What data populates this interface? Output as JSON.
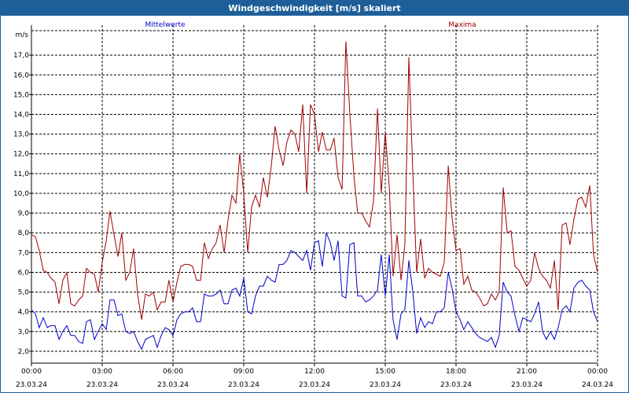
{
  "window": {
    "title": "Windgeschwindigkeit [m/s] skaliert"
  },
  "colors": {
    "titlebar": "#1f5f99",
    "mean": "#0000c8",
    "max": "#a00000",
    "grid": "#000000"
  },
  "chart_data": {
    "type": "line",
    "title": "Windgeschwindigkeit [m/s] skaliert",
    "ylabel": "m/s",
    "xlabel": "",
    "ylim": [
      1.4,
      18.2
    ],
    "xlim": [
      0,
      24
    ],
    "grid": true,
    "y_ticks": [
      "2,0",
      "3,0",
      "4,0",
      "5,0",
      "6,0",
      "7,0",
      "8,0",
      "9,0",
      "10,0",
      "11,0",
      "12,0",
      "13,0",
      "14,0",
      "15,0",
      "16,0",
      "17,0"
    ],
    "x_ticks": [
      {
        "time": "00:00",
        "date": "23.03.24"
      },
      {
        "time": "03:00",
        "date": "23.03.24"
      },
      {
        "time": "06:00",
        "date": "23.03.24"
      },
      {
        "time": "09:00",
        "date": "23.03.24"
      },
      {
        "time": "12:00",
        "date": "23.03.24"
      },
      {
        "time": "15:00",
        "date": "23.03.24"
      },
      {
        "time": "18:00",
        "date": "23.03.24"
      },
      {
        "time": "21:00",
        "date": "23.03.24"
      },
      {
        "time": "00:00",
        "date": "24.03.24"
      }
    ],
    "series": [
      {
        "name": "Mittelwerte",
        "color": "#0000c8",
        "points": [
          [
            0.0,
            4.1
          ],
          [
            0.17,
            3.9
          ],
          [
            0.33,
            3.2
          ],
          [
            0.5,
            3.7
          ],
          [
            0.67,
            3.2
          ],
          [
            0.83,
            3.3
          ],
          [
            1.0,
            3.3
          ],
          [
            1.17,
            2.6
          ],
          [
            1.33,
            3.0
          ],
          [
            1.5,
            3.3
          ],
          [
            1.67,
            2.8
          ],
          [
            1.83,
            2.8
          ],
          [
            2.0,
            2.5
          ],
          [
            2.17,
            2.4
          ],
          [
            2.33,
            3.5
          ],
          [
            2.5,
            3.6
          ],
          [
            2.67,
            2.6
          ],
          [
            2.83,
            3.0
          ],
          [
            3.0,
            3.4
          ],
          [
            3.17,
            3.1
          ],
          [
            3.33,
            4.6
          ],
          [
            3.5,
            4.6
          ],
          [
            3.67,
            3.8
          ],
          [
            3.83,
            3.9
          ],
          [
            4.0,
            3.0
          ],
          [
            4.17,
            2.9
          ],
          [
            4.33,
            3.0
          ],
          [
            4.5,
            2.5
          ],
          [
            4.67,
            2.1
          ],
          [
            4.83,
            2.6
          ],
          [
            5.0,
            2.7
          ],
          [
            5.17,
            2.8
          ],
          [
            5.33,
            2.2
          ],
          [
            5.5,
            2.8
          ],
          [
            5.67,
            3.2
          ],
          [
            5.83,
            3.1
          ],
          [
            6.0,
            2.8
          ],
          [
            6.17,
            3.6
          ],
          [
            6.33,
            3.9
          ],
          [
            6.5,
            4.0
          ],
          [
            6.67,
            4.0
          ],
          [
            6.83,
            4.2
          ],
          [
            7.0,
            3.5
          ],
          [
            7.17,
            3.5
          ],
          [
            7.33,
            4.9
          ],
          [
            7.5,
            4.8
          ],
          [
            7.67,
            4.8
          ],
          [
            7.83,
            4.9
          ],
          [
            8.0,
            5.1
          ],
          [
            8.17,
            4.4
          ],
          [
            8.33,
            4.4
          ],
          [
            8.5,
            5.1
          ],
          [
            8.67,
            5.2
          ],
          [
            8.83,
            4.8
          ],
          [
            9.0,
            5.7
          ],
          [
            9.17,
            4.0
          ],
          [
            9.33,
            3.9
          ],
          [
            9.5,
            4.8
          ],
          [
            9.67,
            5.3
          ],
          [
            9.83,
            5.3
          ],
          [
            10.0,
            5.8
          ],
          [
            10.17,
            5.6
          ],
          [
            10.33,
            5.5
          ],
          [
            10.5,
            6.4
          ],
          [
            10.67,
            6.4
          ],
          [
            10.83,
            6.6
          ],
          [
            11.0,
            7.1
          ],
          [
            11.17,
            7.0
          ],
          [
            11.33,
            6.8
          ],
          [
            11.5,
            6.6
          ],
          [
            11.67,
            7.1
          ],
          [
            11.83,
            6.1
          ],
          [
            12.0,
            7.5
          ],
          [
            12.17,
            7.6
          ],
          [
            12.33,
            6.3
          ],
          [
            12.5,
            8.0
          ],
          [
            12.67,
            7.5
          ],
          [
            12.83,
            6.6
          ],
          [
            13.0,
            7.6
          ],
          [
            13.17,
            4.8
          ],
          [
            13.33,
            4.7
          ],
          [
            13.5,
            7.4
          ],
          [
            13.67,
            7.5
          ],
          [
            13.83,
            4.8
          ],
          [
            14.0,
            4.8
          ],
          [
            14.17,
            4.5
          ],
          [
            14.33,
            4.6
          ],
          [
            14.5,
            4.8
          ],
          [
            14.67,
            5.1
          ],
          [
            14.83,
            6.9
          ],
          [
            15.0,
            4.8
          ],
          [
            15.17,
            6.9
          ],
          [
            15.33,
            3.6
          ],
          [
            15.5,
            2.6
          ],
          [
            15.67,
            3.9
          ],
          [
            15.83,
            4.1
          ],
          [
            16.0,
            6.6
          ],
          [
            16.17,
            5.0
          ],
          [
            16.33,
            2.9
          ],
          [
            16.5,
            3.7
          ],
          [
            16.67,
            3.2
          ],
          [
            16.83,
            3.5
          ],
          [
            17.0,
            3.4
          ],
          [
            17.17,
            4.0
          ],
          [
            17.33,
            4.0
          ],
          [
            17.5,
            4.2
          ],
          [
            17.67,
            6.0
          ],
          [
            17.83,
            5.2
          ],
          [
            18.0,
            4.0
          ],
          [
            18.17,
            3.6
          ],
          [
            18.33,
            3.1
          ],
          [
            18.5,
            3.5
          ],
          [
            18.67,
            3.2
          ],
          [
            18.83,
            2.9
          ],
          [
            19.0,
            2.7
          ],
          [
            19.17,
            2.6
          ],
          [
            19.33,
            2.5
          ],
          [
            19.5,
            2.7
          ],
          [
            19.67,
            2.2
          ],
          [
            19.83,
            2.8
          ],
          [
            20.0,
            5.5
          ],
          [
            20.17,
            5.0
          ],
          [
            20.33,
            4.8
          ],
          [
            20.5,
            3.8
          ],
          [
            20.67,
            3.0
          ],
          [
            20.83,
            3.7
          ],
          [
            21.0,
            3.6
          ],
          [
            21.17,
            3.5
          ],
          [
            21.33,
            3.9
          ],
          [
            21.5,
            4.5
          ],
          [
            21.67,
            3.0
          ],
          [
            21.83,
            2.6
          ],
          [
            22.0,
            3.0
          ],
          [
            22.17,
            2.6
          ],
          [
            22.33,
            3.2
          ],
          [
            22.5,
            4.1
          ],
          [
            22.67,
            4.3
          ],
          [
            22.83,
            4.0
          ],
          [
            23.0,
            5.2
          ],
          [
            23.17,
            5.5
          ],
          [
            23.33,
            5.6
          ],
          [
            23.5,
            5.3
          ],
          [
            23.67,
            5.1
          ],
          [
            23.83,
            4.0
          ],
          [
            24.0,
            3.5
          ]
        ]
      },
      {
        "name": "Maxima",
        "color": "#a00000",
        "points": [
          [
            0.0,
            7.9
          ],
          [
            0.17,
            7.8
          ],
          [
            0.33,
            7.1
          ],
          [
            0.5,
            6.1
          ],
          [
            0.67,
            6.0
          ],
          [
            0.83,
            5.7
          ],
          [
            1.0,
            5.5
          ],
          [
            1.17,
            4.4
          ],
          [
            1.33,
            5.6
          ],
          [
            1.5,
            6.0
          ],
          [
            1.67,
            4.4
          ],
          [
            1.83,
            4.3
          ],
          [
            2.0,
            4.6
          ],
          [
            2.17,
            4.8
          ],
          [
            2.33,
            6.2
          ],
          [
            2.5,
            6.0
          ],
          [
            2.67,
            5.9
          ],
          [
            2.83,
            5.0
          ],
          [
            3.0,
            6.5
          ],
          [
            3.17,
            7.6
          ],
          [
            3.33,
            9.1
          ],
          [
            3.5,
            7.9
          ],
          [
            3.67,
            6.8
          ],
          [
            3.83,
            8.0
          ],
          [
            4.0,
            5.6
          ],
          [
            4.17,
            6.0
          ],
          [
            4.33,
            7.2
          ],
          [
            4.5,
            4.9
          ],
          [
            4.67,
            3.6
          ],
          [
            4.83,
            4.9
          ],
          [
            5.0,
            4.8
          ],
          [
            5.17,
            5.0
          ],
          [
            5.33,
            4.1
          ],
          [
            5.5,
            4.5
          ],
          [
            5.67,
            4.5
          ],
          [
            5.83,
            5.6
          ],
          [
            6.0,
            4.5
          ],
          [
            6.17,
            5.5
          ],
          [
            6.33,
            6.3
          ],
          [
            6.5,
            6.4
          ],
          [
            6.67,
            6.4
          ],
          [
            6.83,
            6.3
          ],
          [
            7.0,
            5.6
          ],
          [
            7.17,
            5.6
          ],
          [
            7.33,
            7.5
          ],
          [
            7.5,
            6.7
          ],
          [
            7.67,
            7.2
          ],
          [
            7.83,
            7.5
          ],
          [
            8.0,
            8.4
          ],
          [
            8.17,
            7.0
          ],
          [
            8.33,
            8.6
          ],
          [
            8.5,
            9.9
          ],
          [
            8.67,
            9.5
          ],
          [
            8.83,
            12.0
          ],
          [
            9.0,
            10.0
          ],
          [
            9.17,
            7.0
          ],
          [
            9.33,
            9.3
          ],
          [
            9.5,
            9.9
          ],
          [
            9.67,
            9.3
          ],
          [
            9.83,
            10.8
          ],
          [
            10.0,
            9.8
          ],
          [
            10.17,
            11.4
          ],
          [
            10.33,
            13.4
          ],
          [
            10.5,
            12.2
          ],
          [
            10.67,
            11.4
          ],
          [
            10.83,
            12.6
          ],
          [
            11.0,
            13.2
          ],
          [
            11.17,
            13.0
          ],
          [
            11.33,
            12.1
          ],
          [
            11.5,
            14.5
          ],
          [
            11.67,
            10.0
          ],
          [
            11.83,
            14.5
          ],
          [
            12.0,
            14.0
          ],
          [
            12.17,
            12.1
          ],
          [
            12.33,
            13.1
          ],
          [
            12.5,
            12.2
          ],
          [
            12.67,
            12.2
          ],
          [
            12.83,
            12.8
          ],
          [
            13.0,
            10.8
          ],
          [
            13.17,
            10.2
          ],
          [
            13.33,
            17.7
          ],
          [
            13.5,
            14.0
          ],
          [
            13.67,
            10.9
          ],
          [
            13.83,
            9.0
          ],
          [
            14.0,
            9.0
          ],
          [
            14.17,
            8.6
          ],
          [
            14.33,
            8.3
          ],
          [
            14.5,
            9.6
          ],
          [
            14.67,
            14.3
          ],
          [
            14.83,
            10.0
          ],
          [
            15.0,
            13.1
          ],
          [
            15.17,
            10.3
          ],
          [
            15.33,
            5.8
          ],
          [
            15.5,
            7.9
          ],
          [
            15.67,
            5.6
          ],
          [
            15.83,
            7.4
          ],
          [
            16.0,
            16.9
          ],
          [
            16.17,
            11.0
          ],
          [
            16.33,
            6.0
          ],
          [
            16.5,
            7.7
          ],
          [
            16.67,
            5.7
          ],
          [
            16.83,
            6.2
          ],
          [
            17.0,
            6.0
          ],
          [
            17.17,
            5.9
          ],
          [
            17.33,
            5.8
          ],
          [
            17.5,
            6.5
          ],
          [
            17.67,
            11.4
          ],
          [
            17.83,
            8.8
          ],
          [
            18.0,
            7.1
          ],
          [
            18.17,
            7.2
          ],
          [
            18.33,
            5.4
          ],
          [
            18.5,
            5.8
          ],
          [
            18.67,
            5.1
          ],
          [
            18.83,
            5.0
          ],
          [
            19.0,
            4.7
          ],
          [
            19.17,
            4.3
          ],
          [
            19.33,
            4.4
          ],
          [
            19.5,
            4.9
          ],
          [
            19.67,
            4.6
          ],
          [
            19.83,
            5.0
          ],
          [
            20.0,
            10.3
          ],
          [
            20.17,
            8.0
          ],
          [
            20.33,
            8.1
          ],
          [
            20.5,
            6.3
          ],
          [
            20.67,
            6.1
          ],
          [
            20.83,
            5.7
          ],
          [
            21.0,
            5.3
          ],
          [
            21.17,
            5.6
          ],
          [
            21.33,
            7.0
          ],
          [
            21.5,
            6.2
          ],
          [
            21.67,
            5.8
          ],
          [
            21.83,
            5.6
          ],
          [
            22.0,
            5.2
          ],
          [
            22.17,
            6.6
          ],
          [
            22.33,
            4.1
          ],
          [
            22.5,
            8.4
          ],
          [
            22.67,
            8.5
          ],
          [
            22.83,
            7.4
          ],
          [
            23.0,
            8.7
          ],
          [
            23.17,
            9.7
          ],
          [
            23.33,
            9.8
          ],
          [
            23.5,
            9.3
          ],
          [
            23.67,
            10.4
          ],
          [
            23.83,
            6.9
          ],
          [
            24.0,
            6.0
          ]
        ]
      }
    ]
  }
}
